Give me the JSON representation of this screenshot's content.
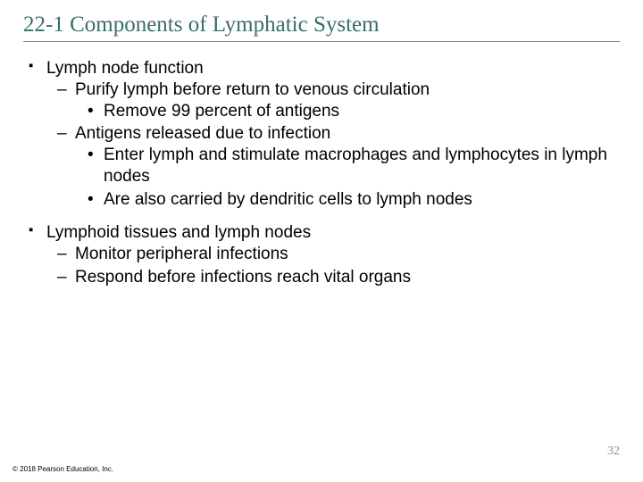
{
  "title": "22-1 Components of Lymphatic System",
  "sections": [
    {
      "heading": "Lymph node function",
      "items": [
        {
          "text": "Purify lymph before return to venous circulation",
          "sub": [
            "Remove 99 percent of antigens"
          ]
        },
        {
          "text": "Antigens released due to infection",
          "sub": [
            "Enter lymph and stimulate macrophages and lymphocytes in lymph nodes",
            "Are also carried by dendritic cells to lymph nodes"
          ]
        }
      ]
    },
    {
      "heading": "Lymphoid tissues and lymph nodes",
      "items": [
        {
          "text": "Monitor peripheral infections",
          "sub": []
        },
        {
          "text": "Respond before infections reach vital organs",
          "sub": []
        }
      ]
    }
  ],
  "pageNumber": "32",
  "copyright": "© 2018 Pearson Education, Inc.",
  "colors": {
    "title": "#3a6e6b",
    "pageNumber": "#9a8f7a",
    "text": "#000000",
    "background": "#ffffff",
    "rule": "#888888"
  },
  "typography": {
    "title_fontfamily": "Times New Roman",
    "title_fontsize": 25,
    "body_fontfamily": "Arial",
    "body_fontsize": 19,
    "pagenum_fontsize": 14,
    "copyright_fontsize": 8
  }
}
